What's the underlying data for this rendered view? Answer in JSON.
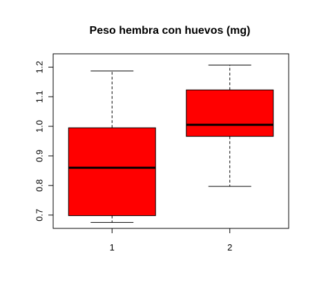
{
  "chart_data": {
    "type": "boxplot",
    "title": "Peso hembra con huevos (mg)",
    "xlabel": "",
    "ylabel": "",
    "categories": [
      "1",
      "2"
    ],
    "ylim": [
      0.655,
      1.245
    ],
    "yticks": [
      "0.7",
      "0.8",
      "0.9",
      "1.0",
      "1.1",
      "1.2"
    ],
    "grid": false,
    "box_color": "#ff0000",
    "boxes": [
      {
        "category": "1",
        "whisker_low": 0.675,
        "q1": 0.698,
        "median": 0.86,
        "q3": 0.995,
        "whisker_high": 1.187
      },
      {
        "category": "2",
        "whisker_low": 0.797,
        "q1": 0.966,
        "median": 1.005,
        "q3": 1.123,
        "whisker_high": 1.207
      }
    ]
  }
}
